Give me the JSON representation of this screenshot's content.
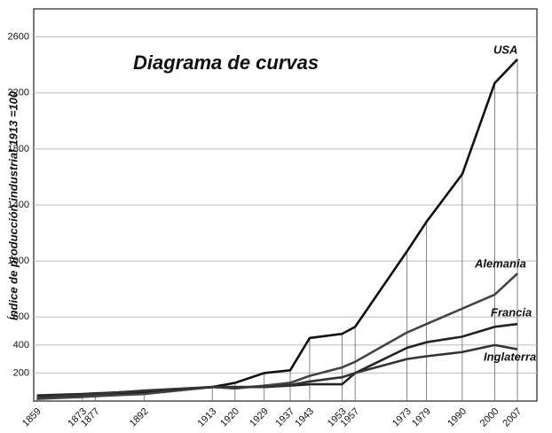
{
  "chart_data": {
    "type": "line",
    "title": "Diagrama de curvas",
    "y_label": "Índice de producción industrial 1913 =100",
    "x": [
      1859,
      1873,
      1877,
      1892,
      1913,
      1920,
      1929,
      1937,
      1943,
      1953,
      1957,
      1973,
      1979,
      1990,
      2000,
      2007
    ],
    "series": [
      {
        "name": "USA",
        "color": "#111111",
        "values": [
          20,
          30,
          35,
          60,
          100,
          130,
          200,
          220,
          450,
          480,
          530,
          1070,
          1280,
          1620,
          2270,
          2440
        ]
      },
      {
        "name": "Alemania",
        "color": "#444444",
        "values": [
          15,
          30,
          35,
          50,
          100,
          90,
          110,
          130,
          180,
          240,
          280,
          490,
          550,
          660,
          760,
          910
        ]
      },
      {
        "name": "Francia",
        "color": "#222222",
        "values": [
          40,
          50,
          55,
          70,
          100,
          100,
          100,
          110,
          120,
          120,
          200,
          380,
          420,
          460,
          530,
          550
        ]
      },
      {
        "name": "Inglaterra",
        "color": "#333333",
        "values": [
          30,
          45,
          50,
          75,
          100,
          100,
          100,
          115,
          140,
          170,
          200,
          300,
          320,
          350,
          400,
          370
        ]
      }
    ],
    "xlim": [
      1858,
      2013
    ],
    "xticks": [
      1859,
      1873,
      1877,
      1892,
      1913,
      1920,
      1929,
      1937,
      1943,
      1953,
      1957,
      1973,
      1979,
      1990,
      2000,
      2007
    ],
    "ylim": [
      0,
      2800
    ],
    "yticks": [
      200,
      400,
      600,
      1000,
      1400,
      1800,
      2200,
      2600
    ],
    "grid": true
  }
}
